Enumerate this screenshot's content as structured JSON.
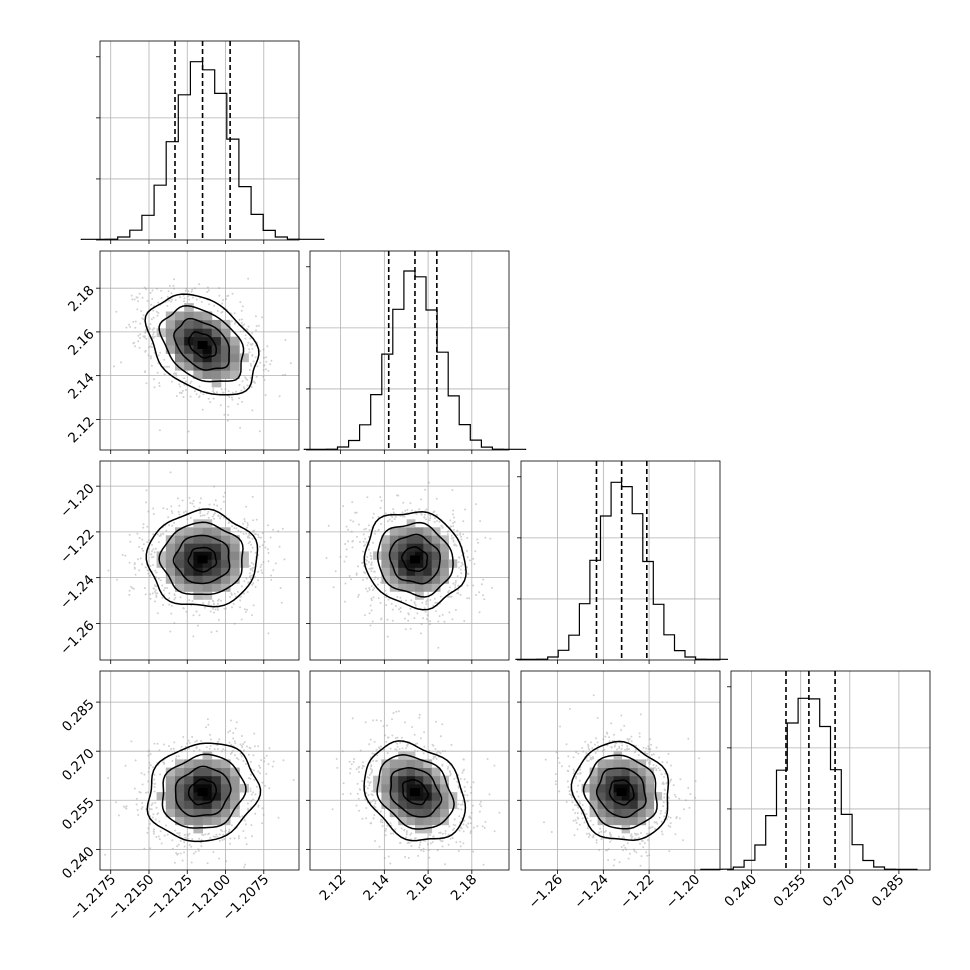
{
  "chart_data": {
    "type": "corner",
    "grid": true,
    "colors": {
      "hist": "#000000",
      "samples": "#9a9a9a",
      "density_dark": "#000000",
      "density_light": "#ffffff",
      "grid": "#b0b0b0"
    },
    "parameters": [
      {
        "mean": -1.2115,
        "sd": 0.0018,
        "range": [
          -1.2182,
          -1.2052
        ],
        "ticks": [
          -1.2175,
          -1.215,
          -1.2125,
          -1.21,
          -1.2075
        ],
        "tick_labels": [
          "−1.2175",
          "−1.2150",
          "−1.2125",
          "−1.2100",
          "−1.2075"
        ],
        "quantiles": [
          -1.2133,
          -1.2115,
          -1.2097
        ]
      },
      {
        "mean": 2.154,
        "sd": 0.0115,
        "range": [
          2.106,
          2.197
        ],
        "ticks": [
          2.12,
          2.14,
          2.16,
          2.18
        ],
        "tick_labels": [
          "2.12",
          "2.14",
          "2.16",
          "2.18"
        ],
        "quantiles": [
          2.142,
          2.154,
          2.164
        ]
      },
      {
        "mean": -1.232,
        "sd": 0.0105,
        "range": [
          -1.276,
          -1.189
        ],
        "ticks": [
          -1.26,
          -1.24,
          -1.22,
          -1.2
        ],
        "tick_labels": [
          "−1.26",
          "−1.24",
          "−1.22",
          "−1.20"
        ],
        "quantiles": [
          -1.243,
          -1.232,
          -1.221
        ]
      },
      {
        "mean": 0.2575,
        "sd": 0.0075,
        "range": [
          0.2337,
          0.2945
        ],
        "ticks": [
          0.24,
          0.255,
          0.27,
          0.285
        ],
        "tick_labels": [
          "0.240",
          "0.255",
          "0.270",
          "0.285"
        ],
        "quantiles": [
          0.2505,
          0.2575,
          0.2655
        ]
      }
    ],
    "correlations": [
      {
        "row": 1,
        "col": 0,
        "rho": -0.35
      },
      {
        "row": 2,
        "col": 0,
        "rho": 0.0
      },
      {
        "row": 2,
        "col": 1,
        "rho": -0.1
      },
      {
        "row": 3,
        "col": 0,
        "rho": 0.1
      },
      {
        "row": 3,
        "col": 1,
        "rho": -0.25
      },
      {
        "row": 3,
        "col": 2,
        "rho": -0.1
      }
    ]
  }
}
